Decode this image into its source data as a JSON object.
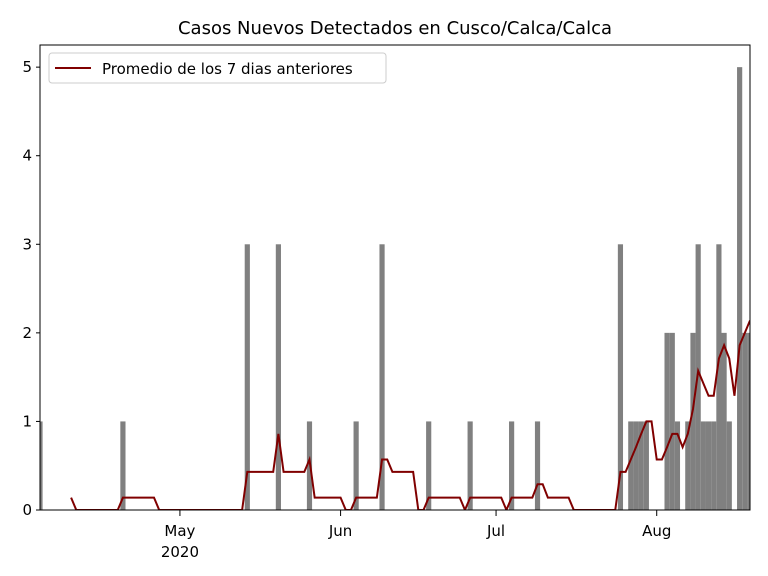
{
  "chart_data": {
    "type": "bar",
    "title": "Casos Nuevos Detectados en Cusco/Calca/Calca",
    "x": [
      95,
      96,
      97,
      98,
      99,
      100,
      101,
      102,
      103,
      104,
      105,
      106,
      107,
      108,
      109,
      110,
      111,
      112,
      113,
      114,
      115,
      116,
      117,
      118,
      119,
      120,
      121,
      122,
      123,
      124,
      125,
      126,
      127,
      128,
      129,
      130,
      131,
      132,
      133,
      134,
      135,
      136,
      137,
      138,
      139,
      140,
      141,
      142,
      143,
      144,
      145,
      146,
      147,
      148,
      149,
      150,
      151,
      152,
      153,
      154,
      155,
      156,
      157,
      158,
      159,
      160,
      161,
      162,
      163,
      164,
      165,
      166,
      167,
      168,
      169,
      170,
      171,
      172,
      173,
      174,
      175,
      176,
      177,
      178,
      179,
      180,
      181,
      182,
      183,
      184,
      185,
      186,
      187,
      188,
      189,
      190,
      191,
      192,
      193,
      194,
      195,
      196,
      197,
      198,
      199,
      200,
      201,
      202,
      203,
      204,
      205,
      206,
      207,
      208,
      209,
      210,
      211,
      212,
      213,
      214,
      215,
      216,
      217,
      218,
      219,
      220,
      221,
      222,
      223,
      224,
      225,
      226,
      227,
      228,
      229,
      230,
      231,
      232
    ],
    "series": [
      {
        "type": "bar",
        "color": "#808080",
        "values": [
          1,
          0,
          0,
          0,
          0,
          0,
          0,
          0,
          0,
          0,
          0,
          0,
          0,
          0,
          0,
          0,
          1,
          0,
          0,
          0,
          0,
          0,
          0,
          0,
          0,
          0,
          0,
          0,
          0,
          0,
          0,
          0,
          0,
          0,
          0,
          0,
          0,
          0,
          0,
          0,
          3,
          0,
          0,
          0,
          0,
          0,
          3,
          0,
          0,
          0,
          0,
          0,
          1,
          0,
          0,
          0,
          0,
          0,
          0,
          0,
          0,
          1,
          0,
          0,
          0,
          0,
          3,
          0,
          0,
          0,
          0,
          0,
          0,
          0,
          0,
          1,
          0,
          0,
          0,
          0,
          0,
          0,
          0,
          1,
          0,
          0,
          0,
          0,
          0,
          0,
          0,
          1,
          0,
          0,
          0,
          0,
          1,
          0,
          0,
          0,
          0,
          0,
          0,
          0,
          0,
          0,
          0,
          0,
          0,
          0,
          0,
          0,
          3,
          0,
          1,
          1,
          1,
          1,
          0,
          0,
          0,
          2,
          2,
          1,
          0,
          1,
          2,
          3,
          1,
          1,
          1,
          3,
          2,
          1,
          0,
          5,
          2,
          2
        ]
      },
      {
        "type": "line",
        "name": "Promedio de los 7 dias anteriores",
        "color": "#800000",
        "values": [
          null,
          null,
          null,
          null,
          null,
          null,
          0.14,
          0,
          0,
          0,
          0,
          0,
          0,
          0,
          0,
          0,
          0.14,
          0.14,
          0.14,
          0.14,
          0.14,
          0.14,
          0.14,
          0,
          0,
          0,
          0,
          0,
          0,
          0,
          0,
          0,
          0,
          0,
          0,
          0,
          0,
          0,
          0,
          0,
          0.43,
          0.43,
          0.43,
          0.43,
          0.43,
          0.43,
          0.86,
          0.43,
          0.43,
          0.43,
          0.43,
          0.43,
          0.57,
          0.14,
          0.14,
          0.14,
          0.14,
          0.14,
          0.14,
          0,
          0,
          0.14,
          0.14,
          0.14,
          0.14,
          0.14,
          0.57,
          0.57,
          0.43,
          0.43,
          0.43,
          0.43,
          0.43,
          0,
          0,
          0.14,
          0.14,
          0.14,
          0.14,
          0.14,
          0.14,
          0.14,
          0,
          0.14,
          0.14,
          0.14,
          0.14,
          0.14,
          0.14,
          0.14,
          0,
          0.14,
          0.14,
          0.14,
          0.14,
          0.14,
          0.29,
          0.29,
          0.14,
          0.14,
          0.14,
          0.14,
          0.14,
          0,
          0,
          0,
          0,
          0,
          0,
          0,
          0,
          0,
          0.43,
          0.43,
          0.57,
          0.71,
          0.86,
          1,
          1,
          0.57,
          0.57,
          0.71,
          0.86,
          0.86,
          0.71,
          0.86,
          1.14,
          1.57,
          1.43,
          1.29,
          1.29,
          1.71,
          1.86,
          1.71,
          1.29,
          1.86,
          2,
          2.14
        ]
      }
    ],
    "xlim": [
      95,
      232
    ],
    "xticks": [
      {
        "value": 122,
        "label": "May\n2020"
      },
      {
        "value": 153,
        "label": "Jun"
      },
      {
        "value": 183,
        "label": "Jul"
      },
      {
        "value": 214,
        "label": "Aug"
      }
    ],
    "ylim": [
      0,
      5.25
    ],
    "yticks": [
      0,
      1,
      2,
      3,
      4,
      5
    ],
    "legend": "upper left"
  }
}
